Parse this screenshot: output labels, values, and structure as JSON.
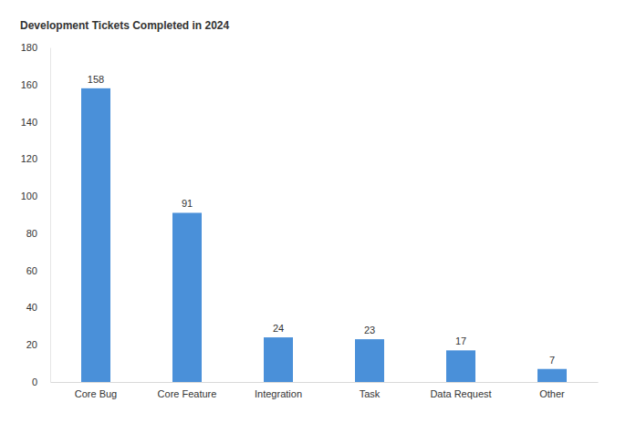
{
  "chart_data": {
    "type": "bar",
    "title": "Development Tickets Completed in 2024",
    "categories": [
      "Core Bug",
      "Core Feature",
      "Integration",
      "Task",
      "Data Request",
      "Other"
    ],
    "values": [
      158,
      91,
      24,
      23,
      17,
      7
    ],
    "color": "#4a90d9",
    "ylim": [
      0,
      180
    ],
    "yticks": [
      0,
      20,
      40,
      60,
      80,
      100,
      120,
      140,
      160,
      180
    ],
    "grid": false,
    "data_labels": true
  }
}
